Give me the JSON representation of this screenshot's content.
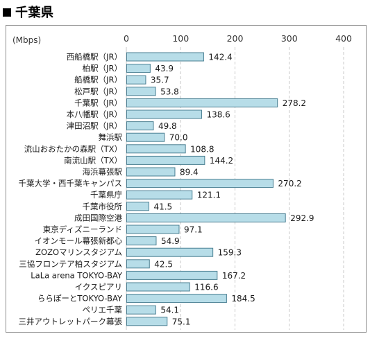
{
  "page": {
    "title": "千葉県"
  },
  "colors": {
    "bar_fill": "#b7dde8",
    "bar_stroke": "#4a7f92",
    "grid": "#c8c8c8",
    "text": "#1a1a1a"
  },
  "chart_data": {
    "type": "bar",
    "orientation": "horizontal",
    "title": "千葉県",
    "unit": "(Mbps)",
    "xlim": [
      0,
      400
    ],
    "ticks": [
      "0",
      "100",
      "200",
      "300",
      "400"
    ],
    "grid": "vertical-dashed",
    "categories": [
      "西船橋駅（JR）",
      "柏駅（JR）",
      "船橋駅（JR）",
      "松戸駅（JR）",
      "千葉駅（JR）",
      "本八幡駅（JR）",
      "津田沼駅（JR）",
      "舞浜駅",
      "流山おおたかの森駅（TX）",
      "南流山駅（TX）",
      "海浜幕張駅",
      "千葉大学・西千葉キャンパス",
      "千葉県庁",
      "千葉市役所",
      "成田国際空港",
      "東京ディズニーランド",
      "イオンモール幕張新都心",
      "ZOZOマリンスタジアム",
      "三協フロンテア柏スタジアム",
      "LaLa arena TOKYO-BAY",
      "イクスピアリ",
      "ららぽーとTOKYO-BAY",
      "ペリエ千葉",
      "三井アウトレットパーク幕張"
    ],
    "values": [
      142.4,
      43.9,
      35.7,
      53.8,
      278.2,
      138.6,
      49.8,
      70.0,
      108.8,
      144.2,
      89.4,
      270.2,
      121.1,
      41.5,
      292.9,
      97.1,
      54.9,
      159.3,
      42.5,
      167.2,
      116.6,
      184.5,
      54.1,
      75.1
    ],
    "value_labels": [
      "142.4",
      "43.9",
      "35.7",
      "53.8",
      "278.2",
      "138.6",
      "49.8",
      "70.0",
      "108.8",
      "144.2",
      "89.4",
      "270.2",
      "121.1",
      "41.5",
      "292.9",
      "97.1",
      "54.9",
      "159.3",
      "42.5",
      "167.2",
      "116.6",
      "184.5",
      "54.1",
      "75.1"
    ]
  }
}
